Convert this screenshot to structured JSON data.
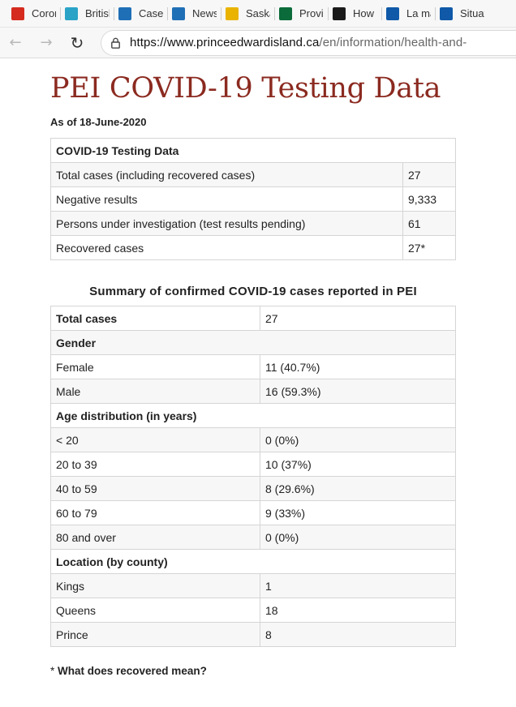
{
  "bookmarks": [
    {
      "label": "Coron",
      "icon": "canada-maple-leaf-icon",
      "color": "#d52b1e"
    },
    {
      "label": "British",
      "icon": "bc-gov-icon",
      "color": "#2aa3c7"
    },
    {
      "label": "Cases",
      "icon": "alberta-icon",
      "color": "#1f6fb6"
    },
    {
      "label": "News",
      "icon": "alberta-icon",
      "color": "#1f6fb6"
    },
    {
      "label": "Saska",
      "icon": "saskatchewan-icon",
      "color": "#e9b300"
    },
    {
      "label": "Provi",
      "icon": "manitoba-icon",
      "color": "#0b6b3a"
    },
    {
      "label": "How",
      "icon": "ontario-icon",
      "color": "#1a1a1a"
    },
    {
      "label": "La ma",
      "icon": "quebec-fleur-icon",
      "color": "#0f59a8"
    },
    {
      "label": "Situat",
      "icon": "quebec-fleur-icon",
      "color": "#0f59a8"
    }
  ],
  "browser": {
    "url_host": "https://www.princeedwardisland.ca",
    "url_path": "/en/information/health-and-"
  },
  "page": {
    "title": "PEI COVID-19 Testing Data",
    "as_of": "As of 18-June-2020",
    "testing_table": {
      "header": "COVID-19 Testing Data",
      "rows": [
        {
          "label": "Total cases (including recovered cases)",
          "value": "27"
        },
        {
          "label": "Negative results",
          "value": "9,333"
        },
        {
          "label": "Persons under investigation (test results pending)",
          "value": "61"
        },
        {
          "label": "Recovered cases",
          "value": "27*"
        }
      ]
    },
    "summary_caption": "Summary of confirmed COVID-19 cases reported in PEI",
    "summary_table": {
      "rows": [
        {
          "label": "Total cases",
          "value": "27",
          "bold": true
        },
        {
          "label": "Gender",
          "section": true
        },
        {
          "label": "Female",
          "value": "11 (40.7%)"
        },
        {
          "label": "Male",
          "value": "16 (59.3%)"
        },
        {
          "label": "Age distribution (in years)",
          "section": true
        },
        {
          "label": "< 20",
          "value": "0 (0%)"
        },
        {
          "label": "20 to 39",
          "value": "10 (37%)"
        },
        {
          "label": "40 to 59",
          "value": "8 (29.6%)"
        },
        {
          "label": "60 to 79",
          "value": "9 (33%)"
        },
        {
          "label": "80 and over",
          "value": "0 (0%)"
        },
        {
          "label": "Location (by county)",
          "section": true
        },
        {
          "label": "Kings",
          "value": "1"
        },
        {
          "label": "Queens",
          "value": "18"
        },
        {
          "label": "Prince",
          "value": "8"
        }
      ]
    },
    "footnote_star": "* ",
    "footnote_text": "What does recovered mean?"
  }
}
